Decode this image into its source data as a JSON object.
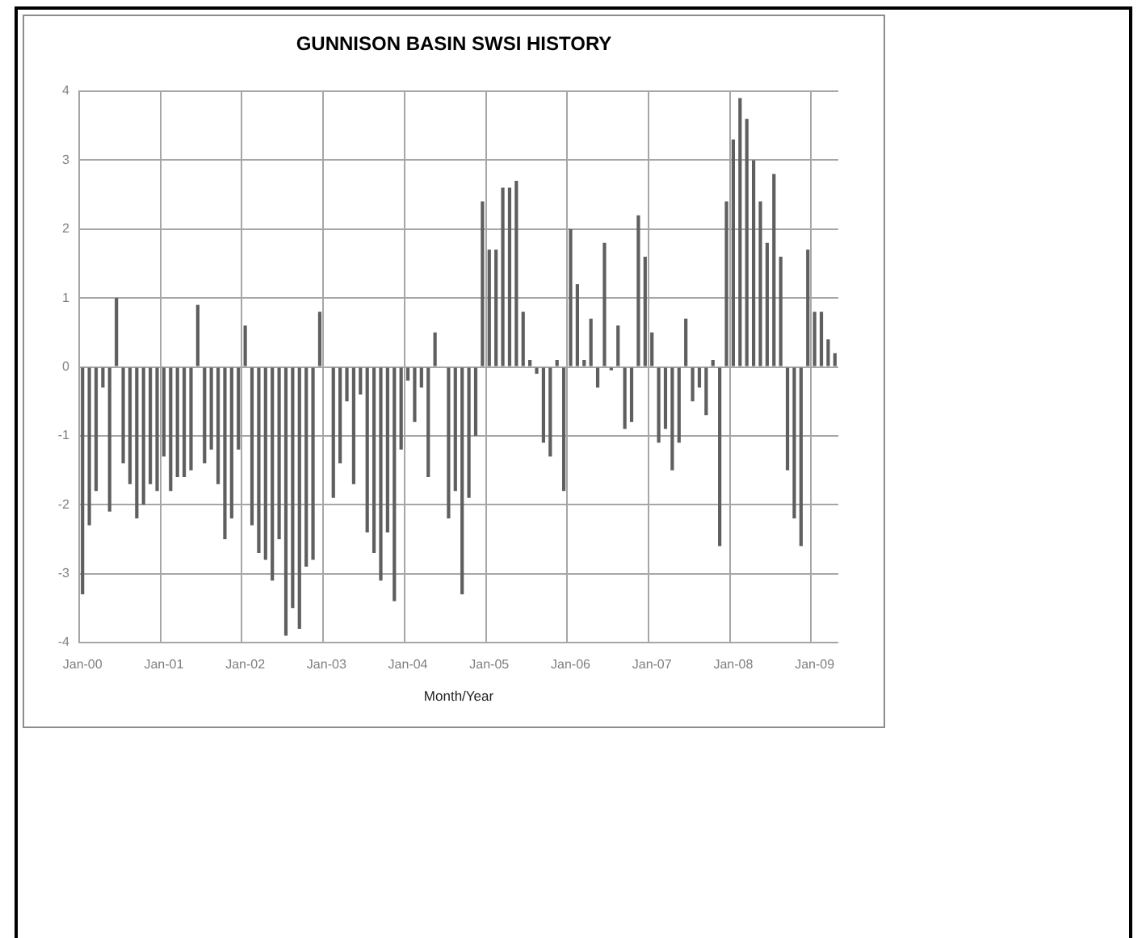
{
  "chart_data": {
    "type": "bar",
    "title": "GUNNISON BASIN SWSI HISTORY",
    "xlabel": "Month/Year",
    "categories": [
      "Jan-00",
      null,
      null,
      null,
      null,
      null,
      null,
      null,
      null,
      null,
      null,
      null,
      "Jan-01",
      null,
      null,
      null,
      null,
      null,
      null,
      null,
      null,
      null,
      null,
      null,
      "Jan-02",
      null,
      null,
      null,
      null,
      null,
      null,
      null,
      null,
      null,
      null,
      null,
      "Jan-03",
      null,
      null,
      null,
      null,
      null,
      null,
      null,
      null,
      null,
      null,
      null,
      "Jan-04",
      null,
      null,
      null,
      null,
      null,
      null,
      null,
      null,
      null,
      null,
      null,
      "Jan-05",
      null,
      null,
      null,
      null,
      null,
      null,
      null,
      null,
      null,
      null,
      null,
      "Jan-06",
      null,
      null,
      null,
      null,
      null,
      null,
      null,
      null,
      null,
      null,
      null,
      "Jan-07",
      null,
      null,
      null,
      null,
      null,
      null,
      null,
      null,
      null,
      null,
      null,
      "Jan-08",
      null,
      null,
      null,
      null,
      null,
      null,
      null,
      null,
      null,
      null,
      null,
      "Jan-09",
      null,
      null,
      null
    ],
    "values": [
      -3.3,
      -2.3,
      -1.8,
      -0.3,
      -2.1,
      1.0,
      -1.4,
      -1.7,
      -2.2,
      -2.0,
      -1.7,
      -1.8,
      -1.3,
      -1.8,
      -1.6,
      -1.6,
      -1.5,
      0.9,
      -1.4,
      -1.2,
      -1.7,
      -2.5,
      -2.2,
      -1.2,
      0.6,
      -2.3,
      -2.7,
      -2.8,
      -3.1,
      -2.5,
      -3.9,
      -3.5,
      -3.8,
      -2.9,
      -2.8,
      0.8,
      null,
      -1.9,
      -1.4,
      -0.5,
      -1.7,
      -0.4,
      -2.4,
      -2.7,
      -3.1,
      -2.4,
      -3.4,
      -1.2,
      -0.2,
      -0.8,
      -0.3,
      -1.6,
      0.5,
      null,
      -2.2,
      -1.8,
      -3.3,
      -1.9,
      -1.0,
      2.4,
      1.7,
      1.7,
      2.6,
      2.6,
      2.7,
      0.8,
      0.1,
      -0.1,
      -1.1,
      -1.3,
      0.1,
      -1.8,
      2.0,
      1.2,
      0.1,
      0.7,
      -0.3,
      1.8,
      -0.05,
      0.6,
      -0.9,
      -0.8,
      2.2,
      1.6,
      0.5,
      -1.1,
      -0.9,
      -1.5,
      -1.1,
      0.7,
      -0.5,
      -0.3,
      -0.7,
      0.1,
      -2.6,
      2.4,
      3.3,
      3.9,
      3.6,
      3.0,
      2.4,
      1.8,
      2.8,
      1.6,
      -1.5,
      -2.2,
      -2.6,
      1.7,
      0.8,
      0.8,
      0.4,
      0.2
    ],
    "color": "#5f5f5f",
    "ylim": [
      -4,
      4
    ],
    "yticks": [
      -4,
      -3,
      -2,
      -1,
      0,
      1,
      2,
      3,
      4
    ],
    "grid": true
  }
}
